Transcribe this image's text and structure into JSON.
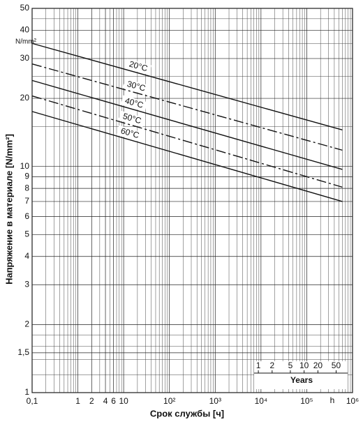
{
  "chart_data": {
    "type": "line",
    "y_label": "Напряжение в материале [N/mm²]",
    "y_unit": "N/mm²",
    "x_label": "Срок службы  [ч]",
    "x_unit": "h",
    "xlog": true,
    "ylog": true,
    "grid": true,
    "xlim": [
      0.1,
      1000000
    ],
    "ylim": [
      1,
      50
    ],
    "xticks": [
      {
        "value": 0.1,
        "label": "0,1"
      },
      1,
      2,
      4,
      6,
      10,
      {
        "value": 100,
        "label": "10²"
      },
      {
        "value": 1000,
        "label": "10³"
      },
      {
        "value": 10000,
        "label": "10⁴"
      },
      {
        "value": 100000,
        "label": "10⁵"
      },
      {
        "value": 1000000,
        "label": "10⁶"
      }
    ],
    "xminor": [
      0.2,
      0.3,
      0.4,
      0.5,
      0.6,
      0.7,
      0.8,
      0.9,
      3,
      5,
      7,
      8,
      9,
      20,
      30,
      40,
      50,
      60,
      70,
      80,
      90,
      200,
      300,
      400,
      500,
      600,
      700,
      800,
      900,
      2000,
      3000,
      4000,
      5000,
      6000,
      7000,
      8000,
      9000,
      20000,
      30000,
      40000,
      50000,
      60000,
      70000,
      80000,
      90000,
      200000,
      300000,
      400000,
      500000,
      600000,
      700000,
      800000,
      900000
    ],
    "yticks": [
      1,
      {
        "value": 1.5,
        "label": "1,5"
      },
      2,
      3,
      4,
      5,
      6,
      7,
      8,
      9,
      10,
      20,
      30,
      40,
      50
    ],
    "yminor": [
      1.2,
      1.4,
      1.6,
      1.8,
      15,
      25,
      35,
      45
    ],
    "years": {
      "title": "Years",
      "ticks": [
        {
          "value": 8760,
          "label": "1"
        },
        {
          "value": 17520,
          "label": "2"
        },
        {
          "value": 43800,
          "label": "5"
        },
        {
          "value": 87600,
          "label": "10"
        },
        {
          "value": 175200,
          "label": "20"
        },
        {
          "value": 438000,
          "label": "50"
        }
      ]
    },
    "x": [
      0.1,
      600000
    ],
    "series": [
      {
        "name": "20°C",
        "color": "#111111",
        "style": "solid",
        "values": [
          35,
          14.5
        ]
      },
      {
        "name": "30°C",
        "color": "#111111",
        "style": "dashdot",
        "values": [
          28.4,
          11.8
        ]
      },
      {
        "name": "40°C",
        "color": "#111111",
        "style": "solid",
        "values": [
          24,
          9.7
        ]
      },
      {
        "name": "50°C",
        "color": "#111111",
        "style": "dashdot",
        "values": [
          20.5,
          8.1
        ]
      },
      {
        "name": "60°C",
        "color": "#111111",
        "style": "solid",
        "values": [
          17.5,
          7.0
        ]
      }
    ]
  }
}
